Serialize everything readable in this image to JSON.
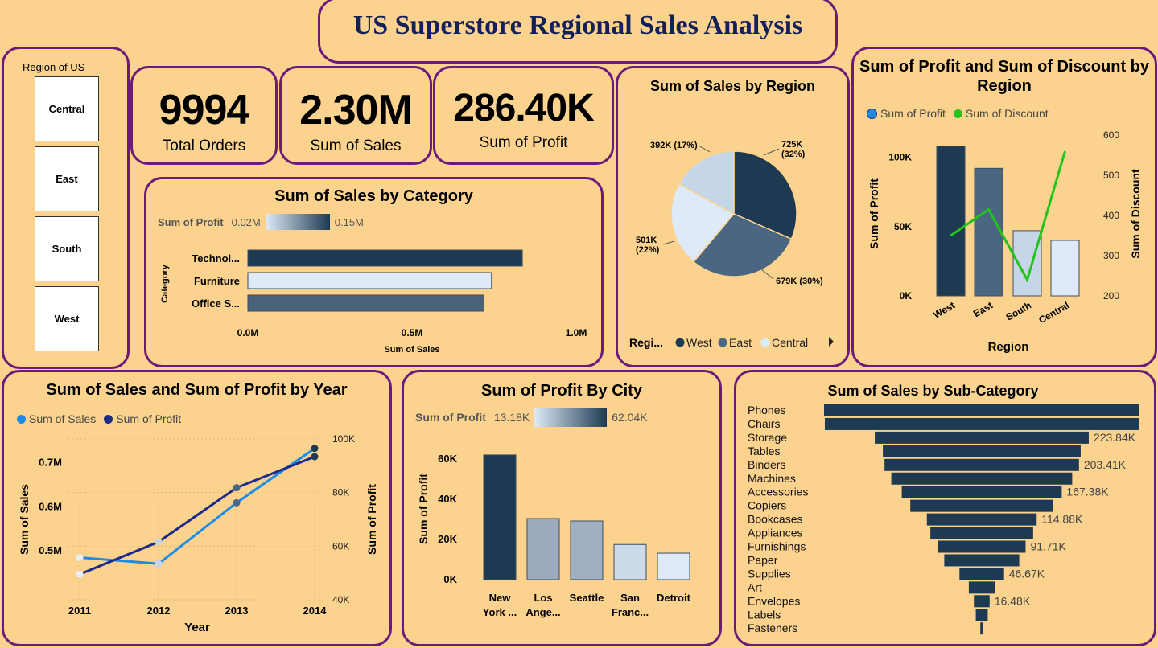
{
  "title": "US Superstore Regional Sales Analysis",
  "slicer": {
    "title": "Region of US",
    "items": [
      "Central",
      "East",
      "South",
      "West"
    ]
  },
  "kpis": {
    "orders": {
      "value": "9994",
      "label": "Total Orders"
    },
    "sales": {
      "value": "2.30M",
      "label": "Sum of Sales"
    },
    "profit": {
      "value": "286.40K",
      "label": "Sum of Profit"
    }
  },
  "colors": {
    "dark": "#1d3a52",
    "mid": "#4a6682",
    "light": "#c5d6e8",
    "lighter": "#deeaf8",
    "sales_line": "#1e8ce6",
    "profit_line": "#1d2a8a",
    "discount_line": "#22c41a",
    "border": "#6b1a7a"
  },
  "chart_data": [
    {
      "id": "category",
      "type": "bar",
      "orientation": "horizontal",
      "title": "Sum of Sales by Category",
      "xlabel": "Sum of Sales",
      "ylabel": "Category",
      "categories": [
        "Technol...",
        "Furniture",
        "Office S..."
      ],
      "values": [
        0.836,
        0.742,
        0.719
      ],
      "profit_values": [
        0.15,
        0.02,
        0.12
      ],
      "xlim": [
        0,
        1.0
      ],
      "xticks": [
        "0.0M",
        "0.5M",
        "1.0M"
      ],
      "gradient_legend": {
        "label": "Sum of Profit",
        "min": "0.02M",
        "max": "0.15M"
      }
    },
    {
      "id": "region_pie",
      "type": "pie",
      "title": "Sum of Sales by Region",
      "slices": [
        {
          "name": "West",
          "value": 725,
          "label": "725K\n(32%)"
        },
        {
          "name": "East",
          "value": 679,
          "label": "679K (30%)"
        },
        {
          "name": "Central",
          "value": 501,
          "label": "501K\n(22%)"
        },
        {
          "name": "South",
          "value": 392,
          "label": "392K (17%)"
        }
      ],
      "legend_title": "Regi...",
      "legend": [
        "West",
        "East",
        "Central"
      ]
    },
    {
      "id": "profit_discount",
      "type": "bar",
      "title": "Sum of Profit and Sum of Discount by Region",
      "categories": [
        "West",
        "East",
        "South",
        "Central"
      ],
      "series": [
        {
          "name": "Sum of Profit",
          "type": "bar",
          "values": [
            108,
            92,
            47,
            40
          ]
        },
        {
          "name": "Sum of Discount",
          "type": "line",
          "values": [
            350,
            415,
            240,
            560
          ]
        }
      ],
      "xlabel": "Region",
      "ylabel": "Sum of Profit",
      "y2label": "Sum of Discount",
      "ylim": [
        0,
        120
      ],
      "yticks": [
        "0K",
        "50K",
        "100K"
      ],
      "y2lim": [
        200,
        600
      ],
      "y2ticks": [
        "200",
        "300",
        "400",
        "500",
        "600"
      ]
    },
    {
      "id": "year",
      "type": "line",
      "title": "Sum of Sales and Sum of Profit by Year",
      "x": [
        "2011",
        "2012",
        "2013",
        "2014"
      ],
      "series": [
        {
          "name": "Sum of Sales",
          "axis": "left",
          "values": [
            0.484,
            0.47,
            0.609,
            0.733
          ]
        },
        {
          "name": "Sum of Profit",
          "axis": "right",
          "values": [
            49.5,
            61.6,
            81.8,
            93.4
          ]
        }
      ],
      "xlabel": "Year",
      "ylabel": "Sum of Sales",
      "y2label": "Sum of Profit",
      "ylim": [
        0.43,
        0.76
      ],
      "yticks": [
        "0.5M",
        "0.6M",
        "0.7M"
      ],
      "y2lim": [
        40,
        100
      ],
      "y2ticks": [
        "40K",
        "60K",
        "80K",
        "100K"
      ]
    },
    {
      "id": "city",
      "type": "bar",
      "title": "Sum of Profit By City",
      "categories": [
        "New York ...",
        "Los Ange...",
        "Seattle",
        "San Franc...",
        "Detroit"
      ],
      "values": [
        62.04,
        30.4,
        29.2,
        17.5,
        13.18
      ],
      "ylabel": "Sum of Profit",
      "ylim": [
        0,
        70
      ],
      "yticks": [
        "0K",
        "20K",
        "40K",
        "60K"
      ],
      "gradient_legend": {
        "label": "Sum of Profit",
        "min": "13.18K",
        "max": "62.04K"
      }
    },
    {
      "id": "subcategory",
      "type": "bar",
      "subtype": "funnel",
      "title": "Sum of Sales by Sub-Category",
      "categories": [
        "Phones",
        "Chairs",
        "Storage",
        "Tables",
        "Binders",
        "Machines",
        "Accessories",
        "Copiers",
        "Bookcases",
        "Appliances",
        "Furnishings",
        "Paper",
        "Supplies",
        "Art",
        "Envelopes",
        "Labels",
        "Fasteners"
      ],
      "values": [
        330.0,
        328.4,
        223.84,
        206.97,
        203.41,
        189.24,
        167.38,
        149.53,
        114.88,
        107.53,
        91.71,
        78.48,
        46.67,
        27.12,
        16.48,
        12.49,
        3.02
      ],
      "data_labels": [
        "",
        "",
        "223.84K",
        "",
        "203.41K",
        "",
        "167.38K",
        "",
        "114.88K",
        "",
        "91.71K",
        "",
        "46.67K",
        "",
        "16.48K",
        "",
        ""
      ]
    }
  ]
}
